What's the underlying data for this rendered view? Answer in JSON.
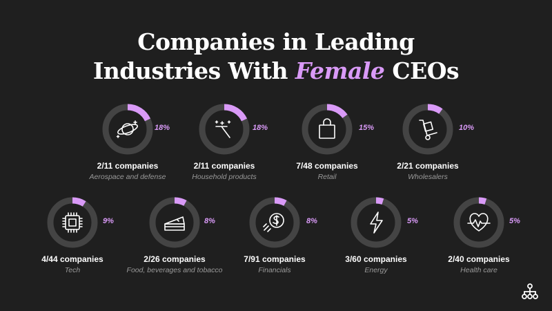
{
  "title": {
    "line1": "Companies in Leading",
    "line2_prefix": "Industries With ",
    "line2_highlight": "Female",
    "line2_suffix": " CEOs"
  },
  "colors": {
    "background": "#1f1f1f",
    "ring": "#444444",
    "accent": "#d99af7",
    "text": "#ffffff",
    "muted": "#9a9a9a"
  },
  "chart_data": {
    "type": "donut",
    "title": "Companies in Leading Industries With Female CEOs",
    "items": [
      {
        "industry": "Aerospace and defense",
        "count_label": "2/11 companies",
        "female": 2,
        "total": 11,
        "percent": 18,
        "percent_label": "18%",
        "icon": "planet-icon"
      },
      {
        "industry": "Household products",
        "count_label": "2/11 companies",
        "female": 2,
        "total": 11,
        "percent": 18,
        "percent_label": "18%",
        "icon": "squeegee-sparkle-icon"
      },
      {
        "industry": "Retail",
        "count_label": "7/48 companies",
        "female": 7,
        "total": 48,
        "percent": 15,
        "percent_label": "15%",
        "icon": "shopping-bag-icon"
      },
      {
        "industry": "Wholesalers",
        "count_label": "2/21 companies",
        "female": 2,
        "total": 21,
        "percent": 10,
        "percent_label": "10%",
        "icon": "hand-truck-icon"
      },
      {
        "industry": "Tech",
        "count_label": "4/44 companies",
        "female": 4,
        "total": 44,
        "percent": 9,
        "percent_label": "9%",
        "icon": "microchip-icon"
      },
      {
        "industry": "Food, beverages and tobacco",
        "count_label": "2/26 companies",
        "female": 2,
        "total": 26,
        "percent": 8,
        "percent_label": "8%",
        "icon": "cake-slice-icon"
      },
      {
        "industry": "Financials",
        "count_label": "7/91 companies",
        "female": 7,
        "total": 91,
        "percent": 8,
        "percent_label": "8%",
        "icon": "dollar-coin-icon"
      },
      {
        "industry": "Energy",
        "count_label": "3/60 companies",
        "female": 3,
        "total": 60,
        "percent": 5,
        "percent_label": "5%",
        "icon": "lightning-icon"
      },
      {
        "industry": "Health care",
        "count_label": "2/40 companies",
        "female": 2,
        "total": 40,
        "percent": 5,
        "percent_label": "5%",
        "icon": "heartbeat-icon"
      }
    ]
  }
}
